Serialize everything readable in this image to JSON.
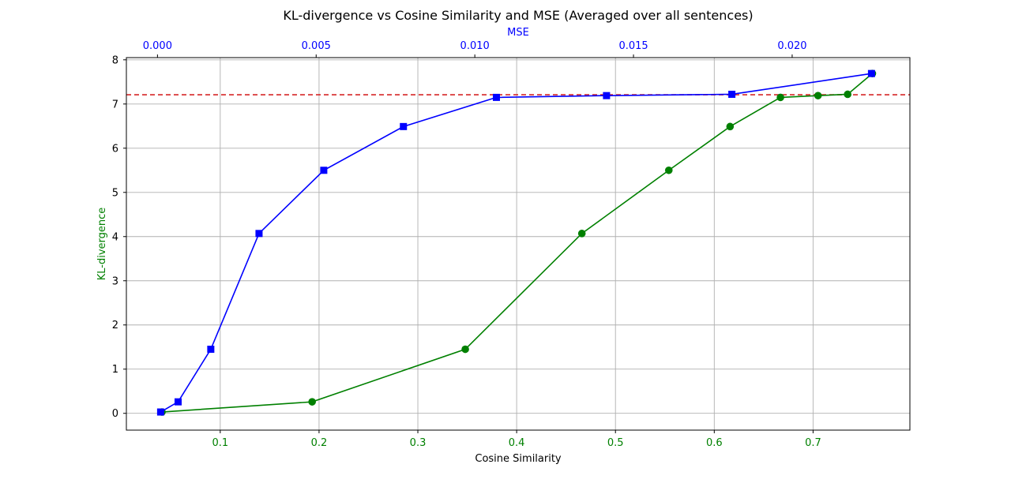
{
  "chart_data": {
    "type": "line",
    "title": "KL-divergence vs Cosine Similarity and MSE (Averaged over all sentences)",
    "xlabel": "Cosine Similarity",
    "ylabel": "KL-divergence",
    "x2label": "MSE",
    "xlim": [
      0.005,
      0.798
    ],
    "x2lim": [
      -0.00098,
      0.02371
    ],
    "ylim": [
      -0.38,
      8.05
    ],
    "x_ticks": [
      "0.1",
      "0.2",
      "0.3",
      "0.4",
      "0.5",
      "0.6",
      "0.7"
    ],
    "x2_ticks": [
      "0.000",
      "0.005",
      "0.010",
      "0.015",
      "0.020"
    ],
    "y_ticks": [
      "0",
      "1",
      "2",
      "3",
      "4",
      "5",
      "6",
      "7",
      "8"
    ],
    "grid": true,
    "colors": {
      "cosine": "#008000",
      "mse": "#0000ff",
      "reference": "#d62728",
      "axis": "#000000",
      "grid": "#b0b0b0"
    },
    "series": [
      {
        "axis": "bottom",
        "marker": "circle",
        "color": "#008000",
        "x": [
          0.041,
          0.193,
          0.348,
          0.466,
          0.554,
          0.616,
          0.667,
          0.705,
          0.735,
          0.76
        ],
        "y": [
          0.03,
          0.26,
          1.45,
          4.07,
          5.5,
          6.49,
          7.15,
          7.19,
          7.22,
          7.69
        ]
      },
      {
        "axis": "top",
        "marker": "square",
        "color": "#0000ff",
        "x": [
          0.0001,
          0.00065,
          0.00168,
          0.0032,
          0.00524,
          0.00775,
          0.01068,
          0.01415,
          0.0181,
          0.0225
        ],
        "y": [
          0.03,
          0.26,
          1.45,
          4.07,
          5.5,
          6.49,
          7.15,
          7.19,
          7.22,
          7.69
        ]
      }
    ],
    "reference_line": {
      "y": 7.21,
      "style": "dashed",
      "color": "#d62728"
    }
  }
}
